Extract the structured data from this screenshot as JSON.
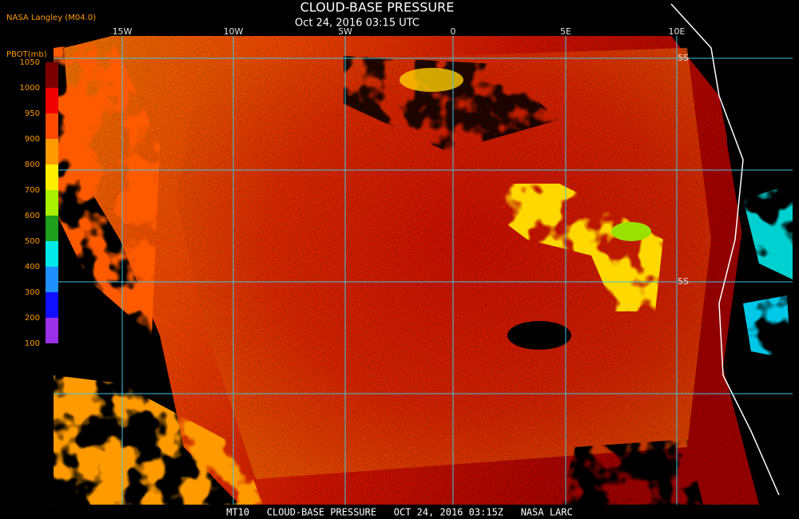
{
  "header": {
    "source": "NASA Langley (M04.0)",
    "title": "CLOUD-BASE PRESSURE",
    "time": "Oct 24, 2016 03:15 UTC"
  },
  "colorbar": {
    "title": "PBOT(mb)",
    "labels": [
      "1050",
      "1000",
      "950",
      "900",
      "800",
      "700",
      "600",
      "500",
      "400",
      "300",
      "200",
      "100"
    ],
    "colors": [
      "#7a0000",
      "#ee0000",
      "#ff4a00",
      "#ff9a00",
      "#ffee00",
      "#a8f000",
      "#1ea01e",
      "#00e8e8",
      "#1e90ff",
      "#1010ff",
      "#9a30e8"
    ]
  },
  "map": {
    "longitudes": [
      "15W",
      "10W",
      "5W",
      "0",
      "5E",
      "10E"
    ],
    "latitudes": [
      "5S",
      "5S"
    ]
  },
  "footer": "MT10   CLOUD-BASE PRESSURE   OCT 24, 2016 03:15Z   NASA LARC"
}
